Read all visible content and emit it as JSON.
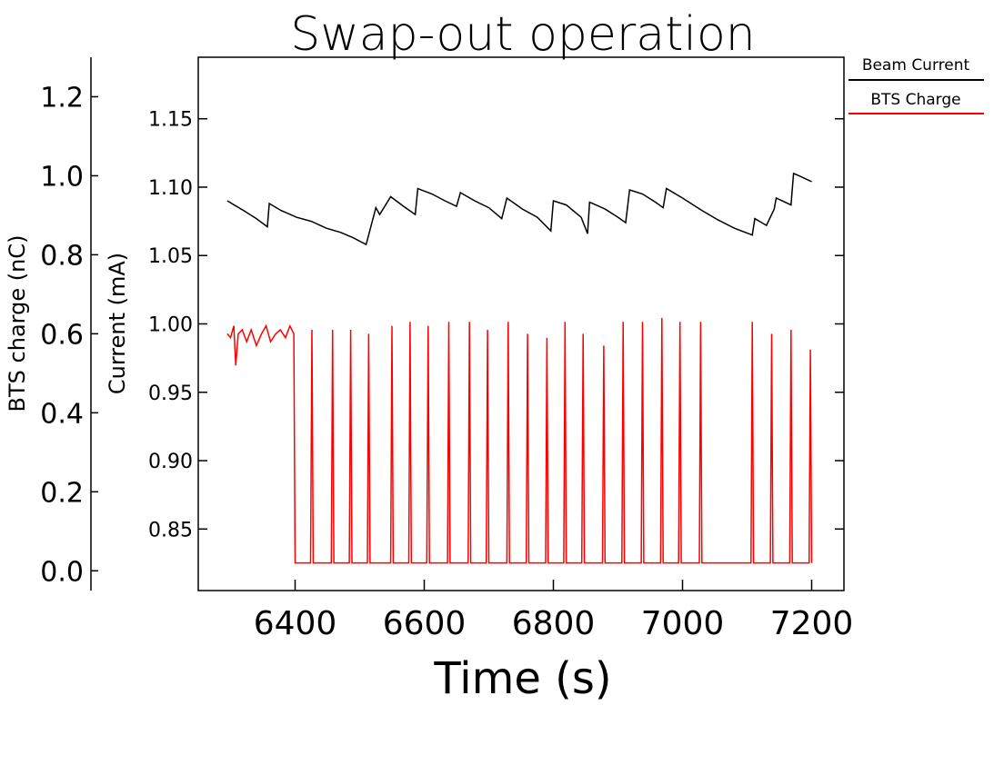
{
  "chart_data": {
    "type": "line",
    "title": "Swap-out operation",
    "xlabel": "Time (s)",
    "xlim": [
      6250,
      7250
    ],
    "x_ticks": [
      "6400",
      "6600",
      "6800",
      "7000",
      "7200"
    ],
    "axes": {
      "current": {
        "label": "Current (mA)",
        "ylim": [
          0.805,
          1.195
        ],
        "ticks": [
          "0.85",
          "0.90",
          "0.95",
          "1.00",
          "1.05",
          "1.10",
          "1.15"
        ]
      },
      "charge": {
        "label": "BTS charge (nC)",
        "ylim": [
          -0.05,
          1.3
        ],
        "ticks": [
          "0.0",
          "0.2",
          "0.4",
          "0.6",
          "0.8",
          "1.0",
          "1.2"
        ]
      }
    },
    "legend": {
      "placement": "right-outside-top",
      "entries": [
        {
          "name": "Beam Current",
          "color": "#000000"
        },
        {
          "name": "BTS Charge",
          "color": "#ff0000"
        }
      ]
    },
    "series": [
      {
        "name": "Beam Current",
        "axis": "current",
        "color": "#000000",
        "x": [
          6295,
          6320,
          6340,
          6357,
          6360,
          6378,
          6402,
          6425,
          6448,
          6470,
          6490,
          6510,
          6525,
          6531,
          6548,
          6568,
          6586,
          6590,
          6612,
          6632,
          6650,
          6656,
          6678,
          6700,
          6720,
          6728,
          6752,
          6775,
          6796,
          6800,
          6820,
          6843,
          6853,
          6856,
          6880,
          6900,
          6912,
          6918,
          6938,
          6958,
          6970,
          6975,
          7000,
          7030,
          7055,
          7080,
          7108,
          7112,
          7130,
          7142,
          7145,
          7168,
          7172,
          7182,
          7200
        ],
        "y": [
          1.09,
          1.083,
          1.077,
          1.071,
          1.088,
          1.083,
          1.078,
          1.075,
          1.07,
          1.067,
          1.063,
          1.058,
          1.085,
          1.08,
          1.093,
          1.086,
          1.08,
          1.099,
          1.095,
          1.09,
          1.086,
          1.096,
          1.09,
          1.085,
          1.077,
          1.092,
          1.084,
          1.078,
          1.068,
          1.09,
          1.087,
          1.078,
          1.066,
          1.089,
          1.084,
          1.078,
          1.074,
          1.098,
          1.095,
          1.089,
          1.085,
          1.099,
          1.092,
          1.083,
          1.076,
          1.07,
          1.065,
          1.077,
          1.072,
          1.084,
          1.092,
          1.087,
          1.11,
          1.108,
          1.104
        ]
      },
      {
        "name": "BTS Charge",
        "axis": "charge",
        "color": "#ff0000",
        "x": [
          6295,
          6300,
          6305,
          6308,
          6312,
          6318,
          6325,
          6332,
          6340,
          6348,
          6355,
          6362,
          6370,
          6377,
          6385,
          6392,
          6398,
          6399,
          6400,
          6402,
          6424,
          6426,
          6428,
          6456,
          6458,
          6460,
          6484,
          6486,
          6488,
          6512,
          6514,
          6516,
          6548,
          6550,
          6552,
          6576,
          6578,
          6580,
          6604,
          6606,
          6608,
          6636,
          6638,
          6640,
          6668,
          6670,
          6672,
          6696,
          6698,
          6700,
          6728,
          6730,
          6732,
          6758,
          6760,
          6762,
          6788,
          6790,
          6792,
          6816,
          6818,
          6820,
          6844,
          6846,
          6848,
          6876,
          6878,
          6880,
          6906,
          6908,
          6910,
          6936,
          6938,
          6940,
          6966,
          6968,
          6970,
          6994,
          6996,
          6998,
          7026,
          7028,
          7030,
          7106,
          7108,
          7110,
          7136,
          7138,
          7140,
          7166,
          7168,
          7170,
          7196,
          7198,
          7200
        ],
        "y": [
          0.6,
          0.59,
          0.62,
          0.52,
          0.6,
          0.61,
          0.58,
          0.61,
          0.57,
          0.6,
          0.62,
          0.58,
          0.6,
          0.61,
          0.59,
          0.62,
          0.6,
          0.3,
          0.02,
          0.02,
          0.02,
          0.61,
          0.02,
          0.02,
          0.61,
          0.02,
          0.02,
          0.61,
          0.02,
          0.02,
          0.6,
          0.02,
          0.02,
          0.62,
          0.02,
          0.02,
          0.63,
          0.02,
          0.02,
          0.62,
          0.02,
          0.02,
          0.63,
          0.02,
          0.02,
          0.63,
          0.02,
          0.02,
          0.61,
          0.02,
          0.02,
          0.63,
          0.02,
          0.02,
          0.6,
          0.02,
          0.02,
          0.59,
          0.02,
          0.02,
          0.63,
          0.02,
          0.02,
          0.6,
          0.02,
          0.02,
          0.57,
          0.02,
          0.02,
          0.63,
          0.02,
          0.02,
          0.63,
          0.02,
          0.02,
          0.64,
          0.02,
          0.02,
          0.63,
          0.02,
          0.02,
          0.63,
          0.02,
          0.02,
          0.63,
          0.02,
          0.02,
          0.6,
          0.02,
          0.02,
          0.61,
          0.02,
          0.02,
          0.56,
          0.02
        ]
      }
    ]
  }
}
